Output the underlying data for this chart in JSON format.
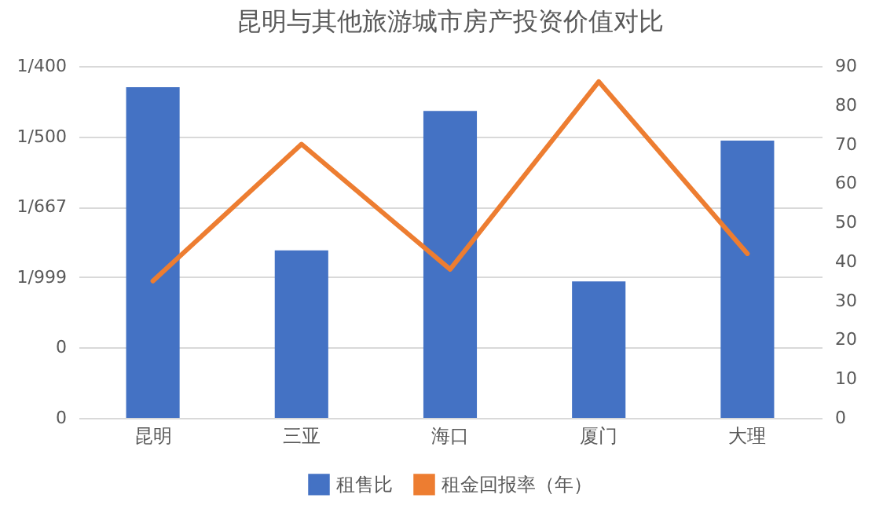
{
  "chart_data": {
    "type": "bar",
    "title": "昆明与其他旅游城市房产投资价值对比",
    "categories": [
      "昆明",
      "三亚",
      "海口",
      "厦门",
      "大理"
    ],
    "series": [
      {
        "name": "租售比",
        "color": "#4472c4",
        "values": [
          0.00235,
          0.00119,
          0.00218,
          0.00097,
          0.00197
        ]
      },
      {
        "name": "租金回报率（年）",
        "type": "line",
        "axis": "y2",
        "color": "#ed7d31",
        "values": [
          35,
          70,
          38,
          86,
          42
        ]
      }
    ],
    "ylim": [
      0,
      0.0025
    ],
    "yticks": [
      {
        "value": 0.0025,
        "label": "1/400"
      },
      {
        "value": 0.002,
        "label": "1/500"
      },
      {
        "value": 0.0015,
        "label": "1/667"
      },
      {
        "value": 0.001,
        "label": "1/999"
      },
      {
        "value": 0.0005,
        "label": "0"
      },
      {
        "value": 0,
        "label": "0"
      }
    ],
    "y2lim": [
      0,
      90
    ],
    "y2ticks": [
      0,
      10,
      20,
      30,
      40,
      50,
      60,
      70,
      80,
      90
    ],
    "grid": "y",
    "legend": "bottom"
  }
}
